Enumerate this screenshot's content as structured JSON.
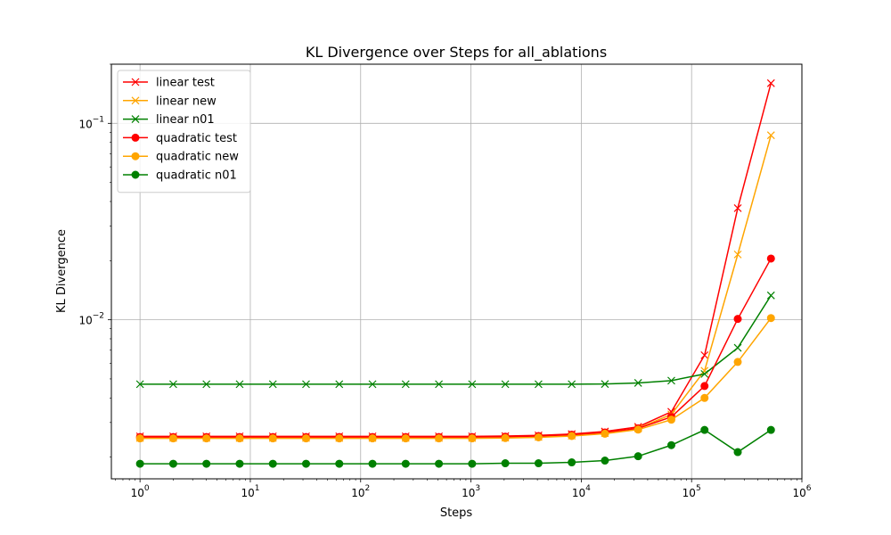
{
  "chart_data": {
    "type": "line",
    "title": "KL Divergence over Steps for all_ablations",
    "xlabel": "Steps",
    "ylabel": "KL Divergence",
    "xscale": "log",
    "yscale": "log",
    "xlim": [
      0.55,
      1000000
    ],
    "ylim": [
      0.00155,
      0.2
    ],
    "grid": true,
    "legend_position": "top-left",
    "x_ticks": [
      {
        "value": 1,
        "base": "10",
        "exp": "0"
      },
      {
        "value": 10,
        "base": "10",
        "exp": "1"
      },
      {
        "value": 100,
        "base": "10",
        "exp": "2"
      },
      {
        "value": 1000,
        "base": "10",
        "exp": "3"
      },
      {
        "value": 10000,
        "base": "10",
        "exp": "4"
      },
      {
        "value": 100000,
        "base": "10",
        "exp": "5"
      },
      {
        "value": 1000000,
        "base": "10",
        "exp": "6"
      }
    ],
    "y_ticks": [
      {
        "value": 0.01,
        "base": "10",
        "exp": "−2"
      },
      {
        "value": 0.1,
        "base": "10",
        "exp": "−1"
      }
    ],
    "x": [
      1,
      2,
      4,
      8,
      16,
      32,
      64,
      128,
      256,
      512,
      1024,
      2048,
      4096,
      8192,
      16384,
      32768,
      65536,
      131072,
      262144,
      524288
    ],
    "series": [
      {
        "name": "linear test",
        "color": "#ff0000",
        "marker": "x",
        "values": [
          0.00255,
          0.00255,
          0.00255,
          0.00255,
          0.00255,
          0.00255,
          0.00255,
          0.00255,
          0.00255,
          0.00255,
          0.00255,
          0.00256,
          0.00258,
          0.00262,
          0.0027,
          0.00285,
          0.0034,
          0.0066,
          0.037,
          0.16
        ]
      },
      {
        "name": "linear new",
        "color": "#ffa500",
        "marker": "x",
        "values": [
          0.0025,
          0.0025,
          0.0025,
          0.0025,
          0.0025,
          0.0025,
          0.0025,
          0.0025,
          0.0025,
          0.0025,
          0.0025,
          0.00251,
          0.00253,
          0.00257,
          0.00265,
          0.0028,
          0.0033,
          0.0055,
          0.0215,
          0.087
        ]
      },
      {
        "name": "linear n01",
        "color": "#008000",
        "marker": "x",
        "values": [
          0.0047,
          0.0047,
          0.0047,
          0.0047,
          0.0047,
          0.0047,
          0.0047,
          0.0047,
          0.0047,
          0.0047,
          0.0047,
          0.0047,
          0.0047,
          0.0047,
          0.00471,
          0.00477,
          0.0049,
          0.0053,
          0.0072,
          0.0133
        ]
      },
      {
        "name": "quadratic test",
        "color": "#ff0000",
        "marker": "o",
        "values": [
          0.00253,
          0.00253,
          0.00253,
          0.00253,
          0.00253,
          0.00253,
          0.00253,
          0.00253,
          0.00253,
          0.00253,
          0.00253,
          0.00254,
          0.00256,
          0.0026,
          0.00267,
          0.0028,
          0.0032,
          0.0046,
          0.0101,
          0.0205
        ]
      },
      {
        "name": "quadratic new",
        "color": "#ffa500",
        "marker": "o",
        "values": [
          0.00249,
          0.00249,
          0.00249,
          0.00249,
          0.00249,
          0.00249,
          0.00249,
          0.00249,
          0.00249,
          0.00249,
          0.00249,
          0.0025,
          0.00252,
          0.00256,
          0.00263,
          0.00276,
          0.0031,
          0.004,
          0.0061,
          0.0102
        ]
      },
      {
        "name": "quadratic n01",
        "color": "#008000",
        "marker": "o",
        "values": [
          0.00185,
          0.00185,
          0.00185,
          0.00185,
          0.00185,
          0.00185,
          0.00185,
          0.00185,
          0.00185,
          0.00185,
          0.00185,
          0.00186,
          0.00186,
          0.00188,
          0.00192,
          0.00202,
          0.0023,
          0.00275,
          0.00212,
          0.00275
        ]
      }
    ]
  }
}
